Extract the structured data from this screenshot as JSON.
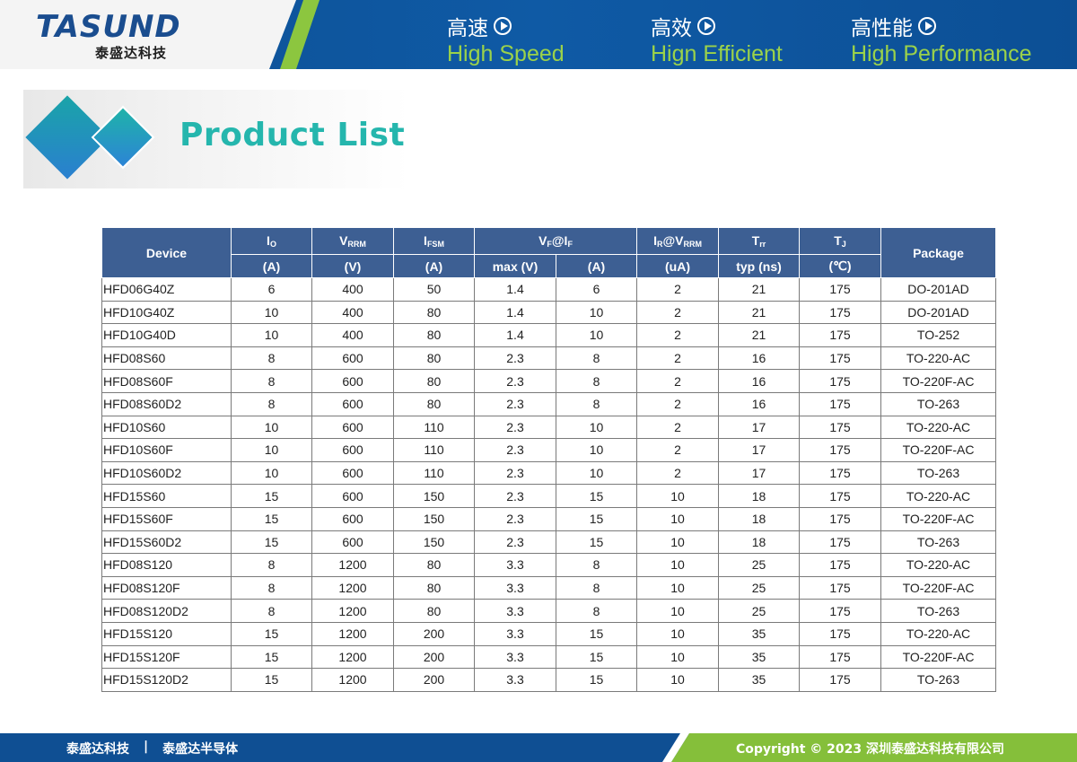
{
  "header": {
    "logo_word": "TASUND",
    "logo_sub": "泰盛达科技",
    "features": [
      {
        "cn": "高速",
        "en": "High Speed"
      },
      {
        "cn": "高效",
        "en": "Hign Efficient"
      },
      {
        "cn": "高性能",
        "en": "High Performance"
      }
    ]
  },
  "title": "Product List",
  "table": {
    "headers": {
      "device": "Device",
      "io": {
        "main": "I",
        "sub": "O",
        "unit": "(A)"
      },
      "vrrm": {
        "main": "V",
        "sub": "RRM",
        "unit": "(V)"
      },
      "ifsm": {
        "main": "I",
        "sub": "FSM",
        "unit": "(A)"
      },
      "vf": {
        "main1": "V",
        "sub1": "F",
        "at": "@I",
        "sub2": "F",
        "unit1": "max (V)",
        "unit2": "(A)"
      },
      "ir": {
        "main1": "I",
        "sub1": "R",
        "at": "@V",
        "sub2": "RRM",
        "unit": "(uA)"
      },
      "trr": {
        "main": "T",
        "sub": "rr",
        "unit": "typ (ns)"
      },
      "tj": {
        "main": "T",
        "sub": "J",
        "unit": "(℃)"
      },
      "package": "Package"
    },
    "rows": [
      [
        "HFD06G40Z",
        "6",
        "400",
        "50",
        "1.4",
        "6",
        "2",
        "21",
        "175",
        "DO-201AD"
      ],
      [
        "HFD10G40Z",
        "10",
        "400",
        "80",
        "1.4",
        "10",
        "2",
        "21",
        "175",
        "DO-201AD"
      ],
      [
        "HFD10G40D",
        "10",
        "400",
        "80",
        "1.4",
        "10",
        "2",
        "21",
        "175",
        "TO-252"
      ],
      [
        "HFD08S60",
        "8",
        "600",
        "80",
        "2.3",
        "8",
        "2",
        "16",
        "175",
        "TO-220-AC"
      ],
      [
        "HFD08S60F",
        "8",
        "600",
        "80",
        "2.3",
        "8",
        "2",
        "16",
        "175",
        "TO-220F-AC"
      ],
      [
        "HFD08S60D2",
        "8",
        "600",
        "80",
        "2.3",
        "8",
        "2",
        "16",
        "175",
        "TO-263"
      ],
      [
        "HFD10S60",
        "10",
        "600",
        "110",
        "2.3",
        "10",
        "2",
        "17",
        "175",
        "TO-220-AC"
      ],
      [
        "HFD10S60F",
        "10",
        "600",
        "110",
        "2.3",
        "10",
        "2",
        "17",
        "175",
        "TO-220F-AC"
      ],
      [
        "HFD10S60D2",
        "10",
        "600",
        "110",
        "2.3",
        "10",
        "2",
        "17",
        "175",
        "TO-263"
      ],
      [
        "HFD15S60",
        "15",
        "600",
        "150",
        "2.3",
        "15",
        "10",
        "18",
        "175",
        "TO-220-AC"
      ],
      [
        "HFD15S60F",
        "15",
        "600",
        "150",
        "2.3",
        "15",
        "10",
        "18",
        "175",
        "TO-220F-AC"
      ],
      [
        "HFD15S60D2",
        "15",
        "600",
        "150",
        "2.3",
        "15",
        "10",
        "18",
        "175",
        "TO-263"
      ],
      [
        "HFD08S120",
        "8",
        "1200",
        "80",
        "3.3",
        "8",
        "10",
        "25",
        "175",
        "TO-220-AC"
      ],
      [
        "HFD08S120F",
        "8",
        "1200",
        "80",
        "3.3",
        "8",
        "10",
        "25",
        "175",
        "TO-220F-AC"
      ],
      [
        "HFD08S120D2",
        "8",
        "1200",
        "80",
        "3.3",
        "8",
        "10",
        "25",
        "175",
        "TO-263"
      ],
      [
        "HFD15S120",
        "15",
        "1200",
        "200",
        "3.3",
        "15",
        "10",
        "35",
        "175",
        "TO-220-AC"
      ],
      [
        "HFD15S120F",
        "15",
        "1200",
        "200",
        "3.3",
        "15",
        "10",
        "35",
        "175",
        "TO-220F-AC"
      ],
      [
        "HFD15S120D2",
        "15",
        "1200",
        "200",
        "3.3",
        "15",
        "10",
        "35",
        "175",
        "TO-263"
      ]
    ]
  },
  "footer": {
    "left1": "泰盛达科技",
    "separator": "|",
    "left2": "泰盛达半导体",
    "copyright": "Copyright © 2023 深圳泰盛达科技有限公司"
  }
}
